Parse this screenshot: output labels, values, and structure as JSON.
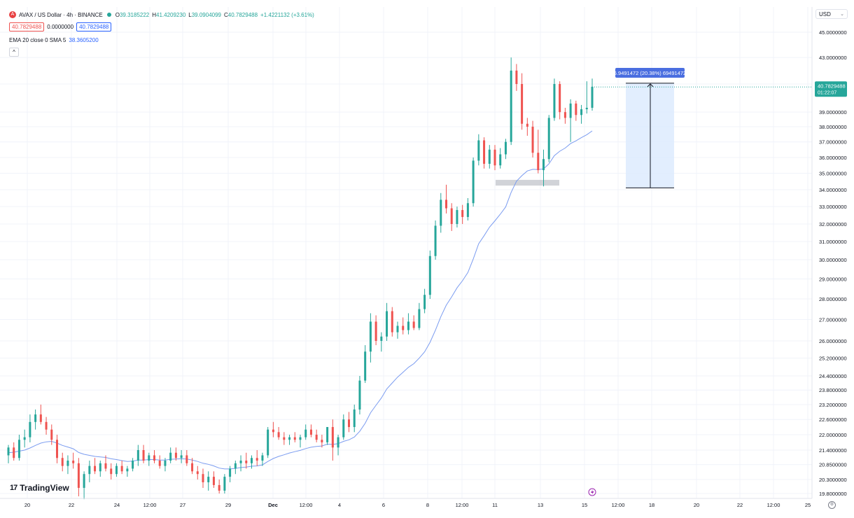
{
  "header": {
    "symbol_icon": "avax-logo-icon",
    "symbol_icon_glyph": "A",
    "title": "AVAX / US Dollar · 4h · BINANCE",
    "ohlc": {
      "o_label": "O",
      "o": "39.3185222",
      "h_label": "H",
      "h": "41.4209230",
      "l_label": "L",
      "l": "39.0904099",
      "c_label": "C",
      "c": "40.7829488",
      "change": "+1.4221132 (+3.61%)"
    },
    "bid": "40.7829488",
    "spread": "0.0000000",
    "ask": "40.7829488",
    "indicator_label": "EMA 20 close 0 SMA 5",
    "indicator_value": "38.3605200",
    "collapse_glyph": "^"
  },
  "currency": {
    "label": "USD",
    "chevron": "⌄"
  },
  "branding": {
    "mark": "17",
    "name": "TradingView"
  },
  "settings_glyph": "⚙",
  "chart_data": {
    "type": "candlestick",
    "title": "AVAX / US Dollar · 4h · BINANCE",
    "y_axis_labels": [
      "45.0000000",
      "43.0000000",
      "41.0000000",
      "39.0000000",
      "38.0000000",
      "37.0000000",
      "36.0000000",
      "35.0000000",
      "34.0000000",
      "33.0000000",
      "32.0000000",
      "31.0000000",
      "30.0000000",
      "29.0000000",
      "28.0000000",
      "27.0000000",
      "26.0000000",
      "25.2000000",
      "24.4000000",
      "23.8000000",
      "23.2000000",
      "22.6000000",
      "22.0000000",
      "21.4000000",
      "20.8500000",
      "20.3000000",
      "19.8000000"
    ],
    "x_axis_labels": [
      "20",
      "22",
      "24",
      "12:00",
      "27",
      "29",
      "Dec",
      "12:00",
      "4",
      "6",
      "8",
      "12:00",
      "11",
      "13",
      "15",
      "12:00",
      "18",
      "20",
      "22",
      "12:00",
      "25"
    ],
    "log_scale": true,
    "last_price": "40.7829488",
    "countdown": "01:22:07",
    "measure_label": "6.9491472 (20.38%) 69491472",
    "measure_from": 34.11,
    "measure_to": 41.06,
    "support_zone": [
      34.25,
      34.6
    ],
    "colors": {
      "up": "#26a69a",
      "down": "#ef5350",
      "ema": "#7b9cf0",
      "measure": "#4a6ee0"
    },
    "candles": [
      [
        21.2,
        21.6,
        20.9,
        21.5
      ],
      [
        21.5,
        21.7,
        21.0,
        21.1
      ],
      [
        21.1,
        22.0,
        21.0,
        21.8
      ],
      [
        21.8,
        22.2,
        21.5,
        21.9
      ],
      [
        21.9,
        22.8,
        21.7,
        22.5
      ],
      [
        22.5,
        23.0,
        22.2,
        22.8
      ],
      [
        22.8,
        23.2,
        22.4,
        22.5
      ],
      [
        22.5,
        22.7,
        22.0,
        22.2
      ],
      [
        22.2,
        22.4,
        21.6,
        21.8
      ],
      [
        21.8,
        22.0,
        20.9,
        21.1
      ],
      [
        21.1,
        21.3,
        20.6,
        20.8
      ],
      [
        20.8,
        21.2,
        20.5,
        21.0
      ],
      [
        21.0,
        21.3,
        20.7,
        20.9
      ],
      [
        20.9,
        21.1,
        19.7,
        20.0
      ],
      [
        20.0,
        20.6,
        19.6,
        20.5
      ],
      [
        20.5,
        21.0,
        20.2,
        20.8
      ],
      [
        20.8,
        21.1,
        20.5,
        20.6
      ],
      [
        20.6,
        21.0,
        20.4,
        20.9
      ],
      [
        20.9,
        21.2,
        20.6,
        20.7
      ],
      [
        20.7,
        20.9,
        20.3,
        20.5
      ],
      [
        20.5,
        20.9,
        20.4,
        20.8
      ],
      [
        20.8,
        21.0,
        20.5,
        20.6
      ],
      [
        20.6,
        20.8,
        20.4,
        20.7
      ],
      [
        20.7,
        21.1,
        20.6,
        21.0
      ],
      [
        21.0,
        21.6,
        20.8,
        21.4
      ],
      [
        21.4,
        21.6,
        20.9,
        21.0
      ],
      [
        21.0,
        21.3,
        20.8,
        21.2
      ],
      [
        21.2,
        21.4,
        20.9,
        21.0
      ],
      [
        21.0,
        21.2,
        20.7,
        20.8
      ],
      [
        20.8,
        21.1,
        20.6,
        21.0
      ],
      [
        21.0,
        21.5,
        20.9,
        21.3
      ],
      [
        21.3,
        21.5,
        21.0,
        21.1
      ],
      [
        21.1,
        21.4,
        20.9,
        21.2
      ],
      [
        21.2,
        21.4,
        20.8,
        20.9
      ],
      [
        20.9,
        21.1,
        20.5,
        20.6
      ],
      [
        20.6,
        20.8,
        20.3,
        20.5
      ],
      [
        20.5,
        20.7,
        20.0,
        20.2
      ],
      [
        20.2,
        20.6,
        19.9,
        20.4
      ],
      [
        20.4,
        20.6,
        20.0,
        20.1
      ],
      [
        20.1,
        20.3,
        19.8,
        19.9
      ],
      [
        19.9,
        20.5,
        19.8,
        20.4
      ],
      [
        20.4,
        20.8,
        20.2,
        20.7
      ],
      [
        20.7,
        21.0,
        20.5,
        20.9
      ],
      [
        20.9,
        21.2,
        20.6,
        21.0
      ],
      [
        21.0,
        21.3,
        20.7,
        20.9
      ],
      [
        20.9,
        21.2,
        20.7,
        21.1
      ],
      [
        21.1,
        21.4,
        20.8,
        21.0
      ],
      [
        21.0,
        21.3,
        20.8,
        21.2
      ],
      [
        21.2,
        22.3,
        21.1,
        22.2
      ],
      [
        22.2,
        22.5,
        21.9,
        22.1
      ],
      [
        22.1,
        22.3,
        21.8,
        21.9
      ],
      [
        21.9,
        22.1,
        21.6,
        21.8
      ],
      [
        21.8,
        22.0,
        21.6,
        21.9
      ],
      [
        21.9,
        22.1,
        21.7,
        21.8
      ],
      [
        21.8,
        22.0,
        21.5,
        21.9
      ],
      [
        21.9,
        22.4,
        21.8,
        22.2
      ],
      [
        22.2,
        22.4,
        21.9,
        22.0
      ],
      [
        22.0,
        22.2,
        21.7,
        21.8
      ],
      [
        21.8,
        22.0,
        21.5,
        21.7
      ],
      [
        21.7,
        22.3,
        21.6,
        22.3
      ],
      [
        22.3,
        22.6,
        21.0,
        21.5
      ],
      [
        21.5,
        22.0,
        21.2,
        21.9
      ],
      [
        21.9,
        22.8,
        21.8,
        22.6
      ],
      [
        22.6,
        22.9,
        22.1,
        22.3
      ],
      [
        22.3,
        23.2,
        22.1,
        23.0
      ],
      [
        23.0,
        24.4,
        22.8,
        24.2
      ],
      [
        24.2,
        25.8,
        24.1,
        25.5
      ],
      [
        25.5,
        27.3,
        25.0,
        26.9
      ],
      [
        26.9,
        27.2,
        25.8,
        26.0
      ],
      [
        26.0,
        26.4,
        25.5,
        26.2
      ],
      [
        26.2,
        27.8,
        26.0,
        27.4
      ],
      [
        27.4,
        27.6,
        26.2,
        26.4
      ],
      [
        26.4,
        26.9,
        26.1,
        26.7
      ],
      [
        26.7,
        27.1,
        26.3,
        26.5
      ],
      [
        26.5,
        27.3,
        26.3,
        26.9
      ],
      [
        26.9,
        27.2,
        26.5,
        26.6
      ],
      [
        26.6,
        27.8,
        26.5,
        27.5
      ],
      [
        27.5,
        28.5,
        27.3,
        28.2
      ],
      [
        28.2,
        30.5,
        28.0,
        30.2
      ],
      [
        30.2,
        32.2,
        30.0,
        31.9
      ],
      [
        31.9,
        33.8,
        31.5,
        33.4
      ],
      [
        33.4,
        34.3,
        32.6,
        32.9
      ],
      [
        32.9,
        33.2,
        31.6,
        32.0
      ],
      [
        32.0,
        33.0,
        31.8,
        32.8
      ],
      [
        32.8,
        33.1,
        32.0,
        32.4
      ],
      [
        32.4,
        33.5,
        32.2,
        33.2
      ],
      [
        33.2,
        36.0,
        33.0,
        35.8
      ],
      [
        35.8,
        37.5,
        35.5,
        37.1
      ],
      [
        37.1,
        37.3,
        35.3,
        35.6
      ],
      [
        35.6,
        36.8,
        35.3,
        36.5
      ],
      [
        36.5,
        36.8,
        35.2,
        35.5
      ],
      [
        35.5,
        36.6,
        35.3,
        36.2
      ],
      [
        36.2,
        37.2,
        35.9,
        37.0
      ],
      [
        37.0,
        43.0,
        36.8,
        42.0
      ],
      [
        42.0,
        42.5,
        40.5,
        41.0
      ],
      [
        41.0,
        41.8,
        37.8,
        38.2
      ],
      [
        38.2,
        38.6,
        37.4,
        38.0
      ],
      [
        38.0,
        38.4,
        36.0,
        36.3
      ],
      [
        36.3,
        37.8,
        35.0,
        35.2
      ],
      [
        35.2,
        36.5,
        34.2,
        35.9
      ],
      [
        35.9,
        38.8,
        35.7,
        38.6
      ],
      [
        38.6,
        41.4,
        38.4,
        41.0
      ],
      [
        41.0,
        41.2,
        38.5,
        39.0
      ],
      [
        39.0,
        39.3,
        38.2,
        38.6
      ],
      [
        38.6,
        39.9,
        37.0,
        39.6
      ],
      [
        39.6,
        39.8,
        38.4,
        38.8
      ],
      [
        38.8,
        39.5,
        38.2,
        39.2
      ],
      [
        39.2,
        41.2,
        38.9,
        39.3
      ],
      [
        39.3,
        41.4,
        39.1,
        40.8
      ]
    ],
    "ema": [
      21.3,
      21.32,
      21.36,
      21.4,
      21.48,
      21.58,
      21.67,
      21.72,
      21.74,
      21.67,
      21.58,
      21.52,
      21.45,
      21.31,
      21.24,
      21.2,
      21.16,
      21.14,
      21.12,
      21.07,
      21.04,
      21.0,
      20.97,
      20.98,
      21.02,
      21.02,
      21.04,
      21.04,
      21.02,
      21.02,
      21.05,
      21.06,
      21.07,
      21.06,
      21.02,
      20.97,
      20.9,
      20.86,
      20.8,
      20.72,
      20.69,
      20.69,
      20.71,
      20.74,
      20.76,
      20.79,
      20.8,
      20.84,
      20.97,
      21.08,
      21.16,
      21.22,
      21.29,
      21.34,
      21.39,
      21.46,
      21.51,
      21.54,
      21.56,
      21.63,
      21.62,
      21.65,
      21.74,
      21.8,
      21.91,
      22.13,
      22.45,
      22.87,
      23.17,
      23.47,
      23.85,
      24.1,
      24.35,
      24.56,
      24.78,
      24.95,
      25.2,
      25.49,
      25.93,
      26.5,
      27.14,
      27.69,
      28.1,
      28.55,
      28.91,
      29.33,
      30.04,
      30.88,
      31.33,
      31.82,
      32.18,
      32.56,
      32.98,
      33.84,
      34.52,
      34.86,
      35.15,
      35.25,
      35.24,
      35.28,
      35.6,
      36.12,
      36.4,
      36.6,
      36.89,
      37.07,
      37.28,
      37.47,
      37.72
    ]
  }
}
